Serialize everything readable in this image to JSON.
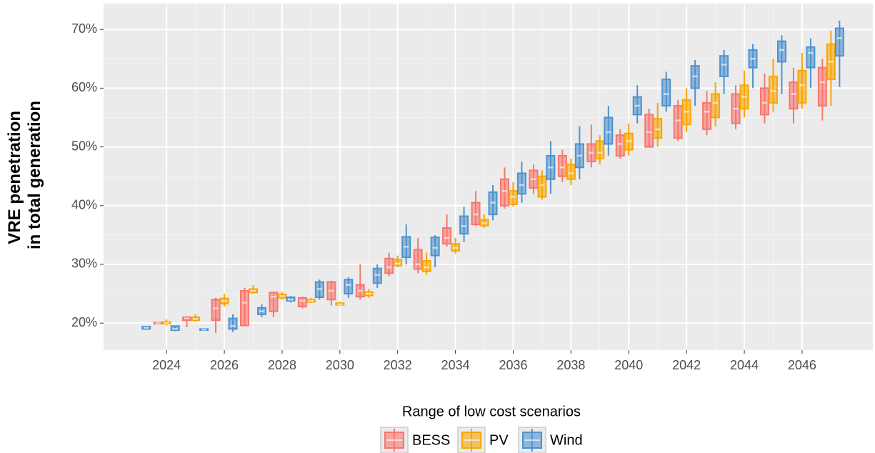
{
  "chart_data": {
    "type": "boxplot",
    "ylabel": [
      "VRE penetration",
      "in total generation"
    ],
    "legend_title": "Range of low cost scenarios",
    "legend_position": "bottom",
    "grid": true,
    "categories": [
      2023,
      2024,
      2025,
      2026,
      2027,
      2028,
      2029,
      2030,
      2031,
      2032,
      2033,
      2034,
      2035,
      2036,
      2037,
      2038,
      2039,
      2040,
      2041,
      2042,
      2043,
      2044,
      2045,
      2046,
      2047
    ],
    "xlim": [
      2021.82,
      2048.45
    ],
    "xticks": [
      2024,
      2026,
      2028,
      2030,
      2032,
      2034,
      2036,
      2038,
      2040,
      2042,
      2044,
      2046
    ],
    "ylim": [
      15.4,
      74.4
    ],
    "yticks": [
      {
        "value": 20,
        "label": "20%"
      },
      {
        "value": 30,
        "label": "30%"
      },
      {
        "value": 40,
        "label": "40%"
      },
      {
        "value": 50,
        "label": "50%"
      },
      {
        "value": 60,
        "label": "60%"
      },
      {
        "value": 70,
        "label": "70%"
      }
    ],
    "series": [
      {
        "name": "BESS",
        "color": "#f8766d",
        "values": [
          null,
          [
            19.8,
            19.9,
            20.0,
            20.1,
            20.2
          ],
          [
            19.3,
            20.5,
            20.8,
            21.0,
            21.2
          ],
          [
            18.3,
            20.5,
            22.5,
            24.0,
            24.3
          ],
          [
            19.5,
            19.6,
            23.5,
            25.5,
            26.0
          ],
          [
            21.0,
            22.0,
            24.5,
            25.2,
            25.3
          ],
          [
            22.5,
            22.8,
            23.8,
            24.3,
            24.5
          ],
          [
            23.0,
            24.0,
            25.5,
            27.0,
            27.2
          ],
          [
            24.0,
            24.5,
            25.5,
            26.5,
            30.0
          ],
          [
            28.0,
            28.5,
            29.5,
            31.0,
            32.0
          ],
          [
            28.5,
            29.2,
            30.0,
            32.5,
            34.5
          ],
          [
            33.0,
            33.5,
            34.5,
            36.2,
            38.5
          ],
          [
            36.5,
            36.8,
            38.5,
            40.5,
            42.5
          ],
          [
            39.5,
            40.0,
            42.5,
            44.5,
            46.5
          ],
          [
            42.0,
            43.0,
            44.5,
            46.0,
            47.0
          ],
          [
            44.0,
            45.0,
            46.5,
            48.5,
            49.5
          ],
          [
            46.5,
            47.5,
            49.0,
            50.5,
            53.8
          ],
          [
            48.0,
            48.5,
            50.5,
            52.0,
            53.0
          ],
          [
            50.0,
            50.0,
            52.5,
            55.5,
            56.5
          ],
          [
            51.0,
            51.5,
            54.5,
            57.0,
            58.0
          ],
          [
            52.0,
            53.0,
            56.0,
            57.5,
            59.5
          ],
          [
            53.0,
            54.0,
            56.5,
            59.0,
            60.5
          ],
          [
            54.0,
            55.5,
            57.5,
            60.0,
            62.5
          ],
          [
            54.0,
            56.5,
            59.0,
            61.0,
            63.5
          ],
          [
            54.5,
            57.0,
            61.0,
            63.5,
            65.0
          ]
        ]
      },
      {
        "name": "PV",
        "color": "#f9a602",
        "values": [
          null,
          [
            19.6,
            19.9,
            20.0,
            20.2,
            20.6
          ],
          [
            20.2,
            20.5,
            20.7,
            21.0,
            21.5
          ],
          [
            22.8,
            23.3,
            23.8,
            24.2,
            25.0
          ],
          [
            25.0,
            25.2,
            25.5,
            25.8,
            26.5
          ],
          [
            24.0,
            24.3,
            24.6,
            24.9,
            25.3
          ],
          [
            23.4,
            23.6,
            23.8,
            24.0,
            24.3
          ],
          [
            23.0,
            23.1,
            23.2,
            23.4,
            23.6
          ],
          [
            24.3,
            24.7,
            25.0,
            25.3,
            25.8
          ],
          [
            29.5,
            29.8,
            30.1,
            30.8,
            31.5
          ],
          [
            28.2,
            28.8,
            29.5,
            30.6,
            32.0
          ],
          [
            31.8,
            32.3,
            32.8,
            33.5,
            34.5
          ],
          [
            36.2,
            36.6,
            37.0,
            37.6,
            38.5
          ],
          [
            39.8,
            40.2,
            41.5,
            42.5,
            44.0
          ],
          [
            41.0,
            41.5,
            43.5,
            45.0,
            46.0
          ],
          [
            43.5,
            44.5,
            45.5,
            47.0,
            48.0
          ],
          [
            47.0,
            48.0,
            49.0,
            51.0,
            52.0
          ],
          [
            48.5,
            49.5,
            51.0,
            52.3,
            54.0
          ],
          [
            50.0,
            51.5,
            53.0,
            54.8,
            57.5
          ],
          [
            52.5,
            53.8,
            56.0,
            58.0,
            60.0
          ],
          [
            53.5,
            55.0,
            57.5,
            59.0,
            61.0
          ],
          [
            55.0,
            56.5,
            58.5,
            60.5,
            63.0
          ],
          [
            56.0,
            57.5,
            59.5,
            62.0,
            65.0
          ],
          [
            56.5,
            57.5,
            60.5,
            63.0,
            66.0
          ],
          [
            57.0,
            61.5,
            64.5,
            67.5,
            69.8
          ]
        ]
      },
      {
        "name": "Wind",
        "color": "#4e92cf",
        "values": [
          [
            18.9,
            19.0,
            19.2,
            19.4,
            19.5
          ],
          [
            18.6,
            18.8,
            19.0,
            19.5,
            19.6
          ],
          [
            18.7,
            18.8,
            18.9,
            19.0,
            19.1
          ],
          [
            18.5,
            19.0,
            19.5,
            20.8,
            21.5
          ],
          [
            21.0,
            21.5,
            22.0,
            22.6,
            23.2
          ],
          [
            23.5,
            23.8,
            24.0,
            24.4,
            24.6
          ],
          [
            24.0,
            24.4,
            25.8,
            27.0,
            27.4
          ],
          [
            24.3,
            25.0,
            26.5,
            27.4,
            27.8
          ],
          [
            26.0,
            26.8,
            28.2,
            29.3,
            30.0
          ],
          [
            30.0,
            31.2,
            33.0,
            34.7,
            36.8
          ],
          [
            29.5,
            31.5,
            32.8,
            34.6,
            35.0
          ],
          [
            33.8,
            35.2,
            36.5,
            38.2,
            39.8
          ],
          [
            37.5,
            38.5,
            40.5,
            42.3,
            43.5
          ],
          [
            40.5,
            42.0,
            43.5,
            45.5,
            47.5
          ],
          [
            42.0,
            44.5,
            46.5,
            48.5,
            51.0
          ],
          [
            44.5,
            46.5,
            48.5,
            50.5,
            53.5
          ],
          [
            48.5,
            50.5,
            52.5,
            55.0,
            57.0
          ],
          [
            54.0,
            55.5,
            57.0,
            58.5,
            60.5
          ],
          [
            56.0,
            57.0,
            59.0,
            61.5,
            62.8
          ],
          [
            57.0,
            60.0,
            62.0,
            63.8,
            64.8
          ],
          [
            59.0,
            62.0,
            64.0,
            65.5,
            66.5
          ],
          [
            60.0,
            63.5,
            65.0,
            66.5,
            67.5
          ],
          [
            59.0,
            64.5,
            66.5,
            68.0,
            69.0
          ],
          [
            60.0,
            63.5,
            66.0,
            67.0,
            68.5
          ],
          [
            60.2,
            65.5,
            68.5,
            70.2,
            71.5
          ]
        ]
      }
    ]
  }
}
